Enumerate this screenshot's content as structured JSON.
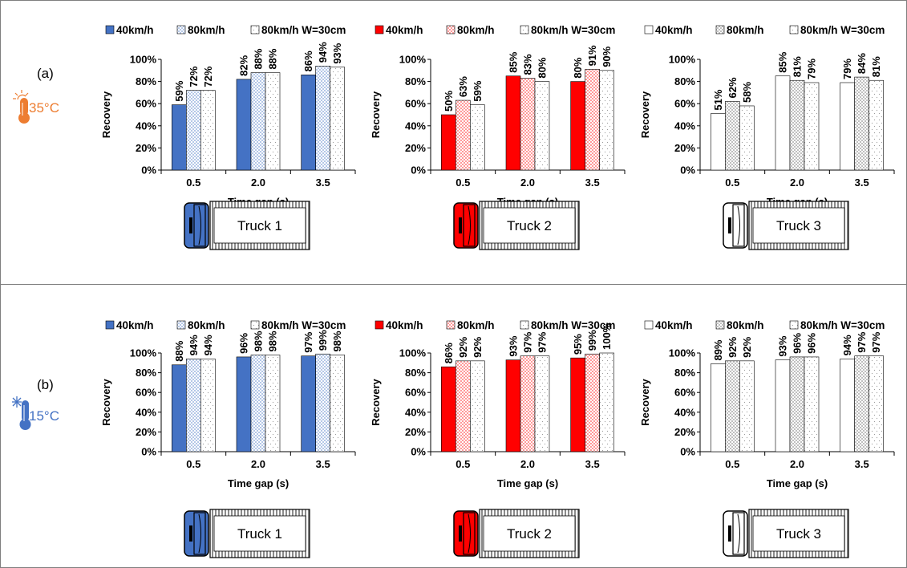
{
  "colors": {
    "truck1": "#4472c4",
    "truck2": "#ff0000",
    "truck3": "#ffffff",
    "truck1_light": "#b4c7e7",
    "truck2_light": "#ff9999",
    "truck3_light": "#bfbfbf",
    "hot": "#ed7d31",
    "cold": "#4472c4"
  },
  "rows": [
    {
      "label": "(a)",
      "temperature": "35°C",
      "temp_icon": "thermometer-sun-icon"
    },
    {
      "label": "(b)",
      "temperature": "15°C",
      "temp_icon": "thermometer-snowflake-icon"
    }
  ],
  "trucks": [
    "Truck 1",
    "Truck 2",
    "Truck 3"
  ],
  "chart_data": [
    {
      "row": "(a)",
      "truck": "Truck 1",
      "type": "bar",
      "categories": [
        "0.5",
        "2.0",
        "3.5"
      ],
      "xlabel": "Time gap (s)",
      "ylabel": "Recovery",
      "yticks": [
        "0%",
        "20%",
        "40%",
        "60%",
        "80%",
        "100%"
      ],
      "ylim": [
        0,
        100
      ],
      "legend_position": "top",
      "series": [
        {
          "name": "40km/h",
          "values": [
            59,
            82,
            86
          ],
          "labels": [
            "59%",
            "82%",
            "86%"
          ]
        },
        {
          "name": "80km/h",
          "values": [
            72,
            88,
            94
          ],
          "labels": [
            "72%",
            "88%",
            "94%"
          ]
        },
        {
          "name": "80km/h W=30cm",
          "values": [
            72,
            88,
            93
          ],
          "labels": [
            "72%",
            "88%",
            "93%"
          ]
        }
      ]
    },
    {
      "row": "(a)",
      "truck": "Truck 2",
      "type": "bar",
      "categories": [
        "0.5",
        "2.0",
        "3.5"
      ],
      "xlabel": "Time gap (s)",
      "ylabel": "Recovery",
      "yticks": [
        "0%",
        "20%",
        "40%",
        "60%",
        "80%",
        "100%"
      ],
      "ylim": [
        0,
        100
      ],
      "legend_position": "top",
      "series": [
        {
          "name": "40km/h",
          "values": [
            50,
            85,
            80
          ],
          "labels": [
            "50%",
            "85%",
            "80%"
          ]
        },
        {
          "name": "80km/h",
          "values": [
            63,
            83,
            91
          ],
          "labels": [
            "63%",
            "83%",
            "91%"
          ]
        },
        {
          "name": "80km/h W=30cm",
          "values": [
            59,
            80,
            90
          ],
          "labels": [
            "59%",
            "80%",
            "90%"
          ]
        }
      ]
    },
    {
      "row": "(a)",
      "truck": "Truck 3",
      "type": "bar",
      "categories": [
        "0.5",
        "2.0",
        "3.5"
      ],
      "xlabel": "Time gap (s)",
      "ylabel": "Recovery",
      "yticks": [
        "0%",
        "20%",
        "40%",
        "60%",
        "80%",
        "100%"
      ],
      "ylim": [
        0,
        100
      ],
      "legend_position": "top",
      "series": [
        {
          "name": "40km/h",
          "values": [
            51,
            85,
            79
          ],
          "labels": [
            "51%",
            "85%",
            "79%"
          ]
        },
        {
          "name": "80km/h",
          "values": [
            62,
            81,
            84
          ],
          "labels": [
            "62%",
            "81%",
            "84%"
          ]
        },
        {
          "name": "80km/h W=30cm",
          "values": [
            58,
            79,
            81
          ],
          "labels": [
            "58%",
            "79%",
            "81%"
          ]
        }
      ]
    },
    {
      "row": "(b)",
      "truck": "Truck 1",
      "type": "bar",
      "categories": [
        "0.5",
        "2.0",
        "3.5"
      ],
      "xlabel": "Time gap (s)",
      "ylabel": "Recovery",
      "yticks": [
        "0%",
        "20%",
        "40%",
        "60%",
        "80%",
        "100%"
      ],
      "ylim": [
        0,
        100
      ],
      "legend_position": "top",
      "series": [
        {
          "name": "40km/h",
          "values": [
            88,
            96,
            97
          ],
          "labels": [
            "88%",
            "96%",
            "97%"
          ]
        },
        {
          "name": "80km/h",
          "values": [
            94,
            98,
            99
          ],
          "labels": [
            "94%",
            "98%",
            "99%"
          ]
        },
        {
          "name": "80km/h W=30cm",
          "values": [
            94,
            98,
            98
          ],
          "labels": [
            "94%",
            "98%",
            "98%"
          ]
        }
      ]
    },
    {
      "row": "(b)",
      "truck": "Truck 2",
      "type": "bar",
      "categories": [
        "0.5",
        "2.0",
        "3.5"
      ],
      "xlabel": "Time gap (s)",
      "ylabel": "Recovery",
      "yticks": [
        "0%",
        "20%",
        "40%",
        "60%",
        "80%",
        "100%"
      ],
      "ylim": [
        0,
        100
      ],
      "legend_position": "top",
      "series": [
        {
          "name": "40km/h",
          "values": [
            86,
            93,
            95
          ],
          "labels": [
            "86%",
            "93%",
            "95%"
          ]
        },
        {
          "name": "80km/h",
          "values": [
            92,
            97,
            99
          ],
          "labels": [
            "92%",
            "97%",
            "99%"
          ]
        },
        {
          "name": "80km/h W=30cm",
          "values": [
            92,
            97,
            100
          ],
          "labels": [
            "92%",
            "97%",
            "100%"
          ]
        }
      ]
    },
    {
      "row": "(b)",
      "truck": "Truck 3",
      "type": "bar",
      "categories": [
        "0.5",
        "2.0",
        "3.5"
      ],
      "xlabel": "Time gap (s)",
      "ylabel": "Recovery",
      "yticks": [
        "0%",
        "20%",
        "40%",
        "60%",
        "80%",
        "100%"
      ],
      "ylim": [
        0,
        100
      ],
      "legend_position": "top",
      "series": [
        {
          "name": "40km/h",
          "values": [
            89,
            93,
            94
          ],
          "labels": [
            "89%",
            "93%",
            "94%"
          ]
        },
        {
          "name": "80km/h",
          "values": [
            92,
            96,
            97
          ],
          "labels": [
            "92%",
            "96%",
            "97%"
          ]
        },
        {
          "name": "80km/h W=30cm",
          "values": [
            92,
            96,
            97
          ],
          "labels": [
            "92%",
            "96%",
            "97%"
          ]
        }
      ]
    }
  ]
}
